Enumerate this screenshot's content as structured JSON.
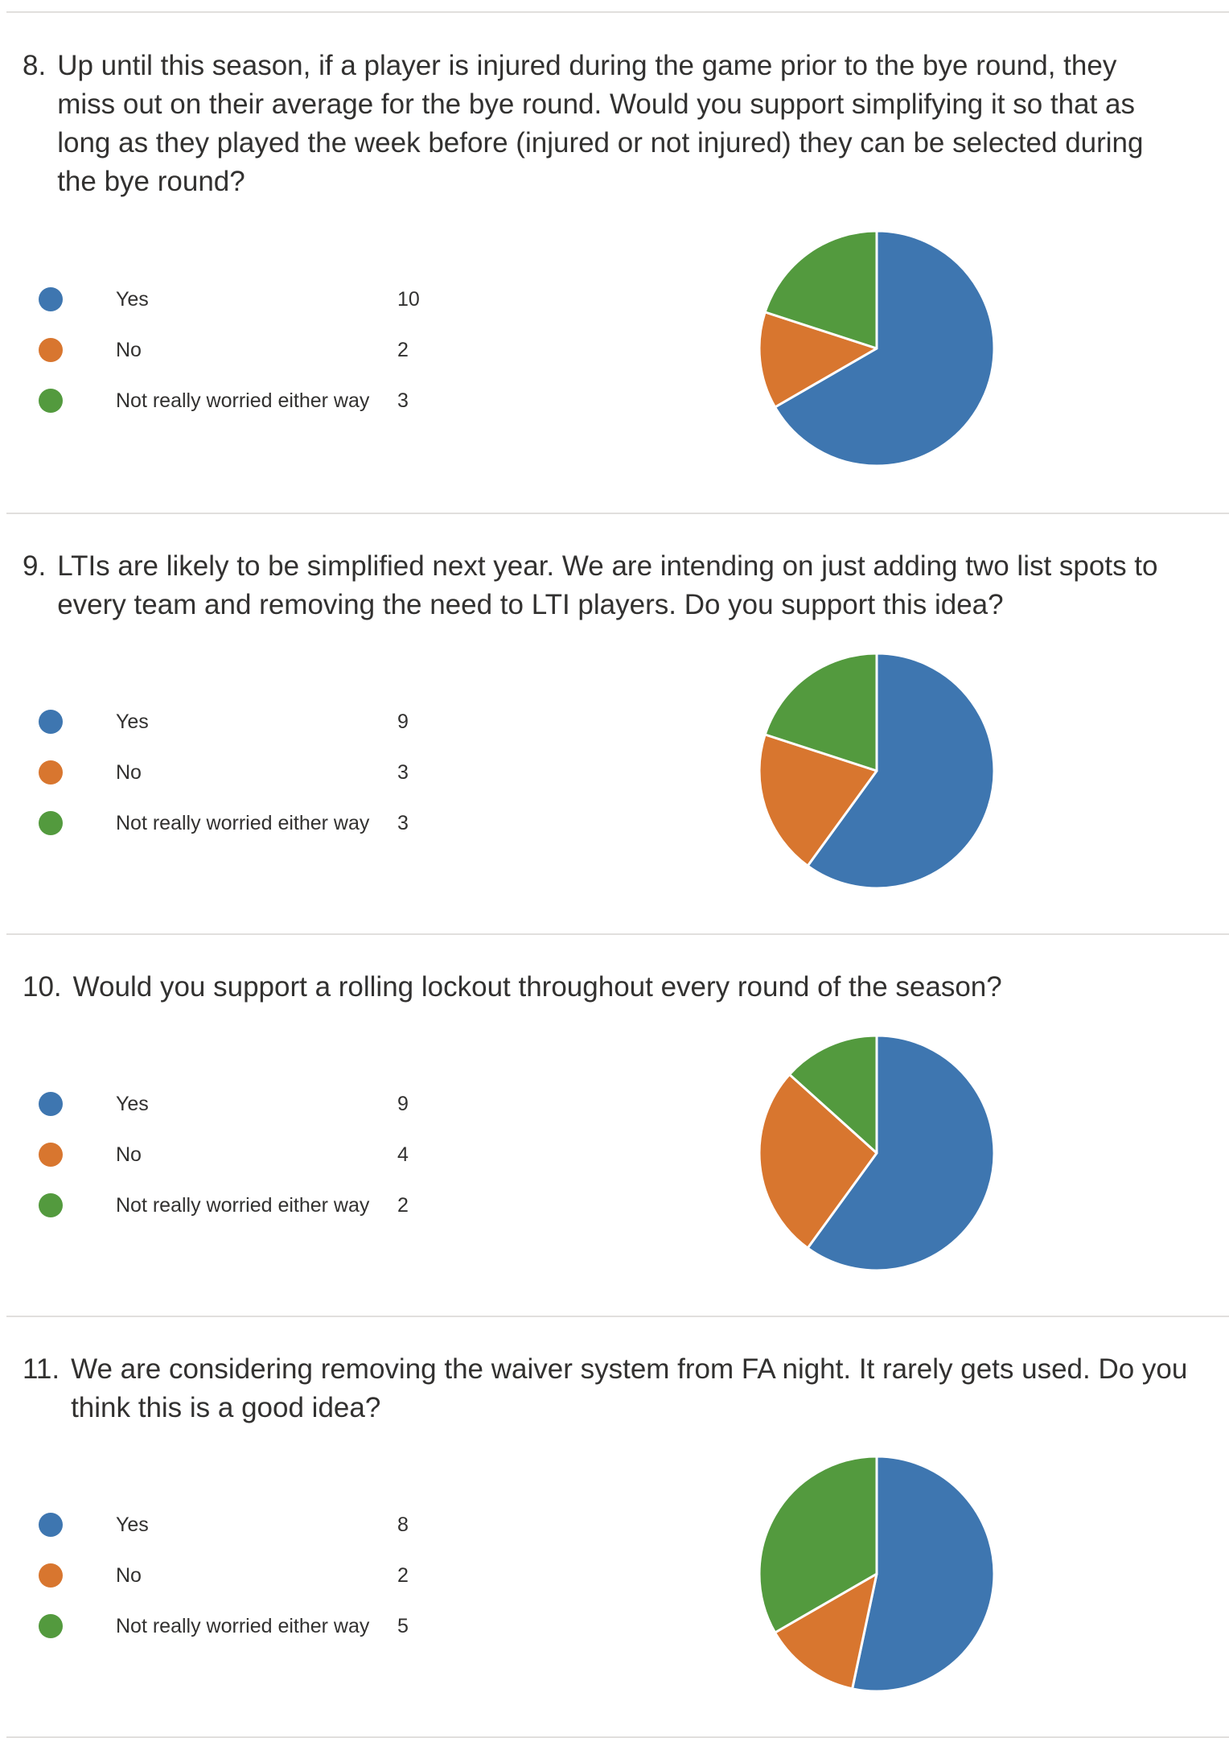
{
  "colors": {
    "yes": "#3e76b0",
    "no": "#d8762f",
    "neutral": "#539a3e"
  },
  "questions": [
    {
      "number": "8.",
      "title": "Up until this season, if a player is injured during the game prior to the bye round, they miss out on their average for the bye round. Would you support simplifying it so that as long as they played the week before (injured or not injured) they can be selected during the bye round?",
      "options": [
        {
          "label": "Yes",
          "count": "10"
        },
        {
          "label": "No",
          "count": "2"
        },
        {
          "label": "Not really worried either way",
          "count": "3"
        }
      ]
    },
    {
      "number": "9.",
      "title": "LTIs are likely to be simplified next year. We are intending on just adding two list spots to every team and removing the need to LTI players. Do you support this idea?",
      "options": [
        {
          "label": "Yes",
          "count": "9"
        },
        {
          "label": "No",
          "count": "3"
        },
        {
          "label": "Not really worried either way",
          "count": "3"
        }
      ]
    },
    {
      "number": "10.",
      "title": "Would you support a rolling lockout throughout every round of the season?",
      "options": [
        {
          "label": "Yes",
          "count": "9"
        },
        {
          "label": "No",
          "count": "4"
        },
        {
          "label": "Not really worried either way",
          "count": "2"
        }
      ]
    },
    {
      "number": "11.",
      "title": "We are considering removing the waiver system from FA night. It rarely gets used. Do you think this is a good idea?",
      "options": [
        {
          "label": "Yes",
          "count": "8"
        },
        {
          "label": "No",
          "count": "2"
        },
        {
          "label": "Not really worried either way",
          "count": "5"
        }
      ]
    }
  ],
  "chart_data": [
    {
      "type": "pie",
      "categories": [
        "Yes",
        "No",
        "Not really worried either way"
      ],
      "values": [
        10,
        2,
        3
      ]
    },
    {
      "type": "pie",
      "categories": [
        "Yes",
        "No",
        "Not really worried either way"
      ],
      "values": [
        9,
        3,
        3
      ]
    },
    {
      "type": "pie",
      "categories": [
        "Yes",
        "No",
        "Not really worried either way"
      ],
      "values": [
        9,
        4,
        2
      ]
    },
    {
      "type": "pie",
      "categories": [
        "Yes",
        "No",
        "Not really worried either way"
      ],
      "values": [
        8,
        2,
        5
      ]
    }
  ]
}
